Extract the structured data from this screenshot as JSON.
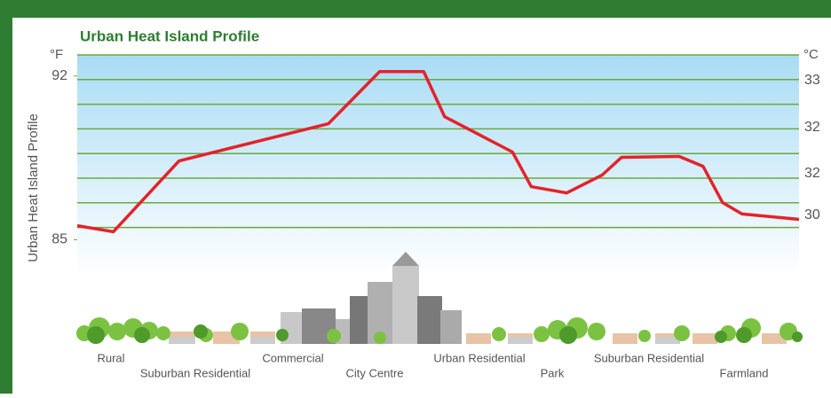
{
  "chart_data": {
    "type": "line",
    "title": "Urban Heat Island Profile",
    "y_axis_label": "Urban Heat Island Profile",
    "y_unit": "°F",
    "y2_unit": "°C",
    "x": [
      0,
      5.0,
      14.1,
      34.8,
      41.9,
      48.0,
      50.9,
      60.3,
      62.9,
      67.8,
      72.7,
      75.4,
      83.4,
      86.7,
      89.4,
      92.1,
      100
    ],
    "xlim": [
      0,
      100
    ],
    "series": [
      {
        "color": "#e3232b",
        "values": [
          85.6,
          85.34,
          88.37,
          89.96,
          92.19,
          92.19,
          90.26,
          88.75,
          87.27,
          87.0,
          87.76,
          88.52,
          88.56,
          88.14,
          86.59,
          86.1,
          85.87
        ]
      }
    ],
    "ylim": [
      83.5,
      92.9
    ],
    "yticks": [
      92,
      85
    ],
    "y2_labels": [
      "33",
      "32",
      "32",
      "30"
    ],
    "zones": [
      "Rural",
      "Suburban Residential",
      "Commercial",
      "City Centre",
      "Urban Residential",
      "Park",
      "Suburban Residential",
      "Farmland"
    ],
    "grid": true
  }
}
